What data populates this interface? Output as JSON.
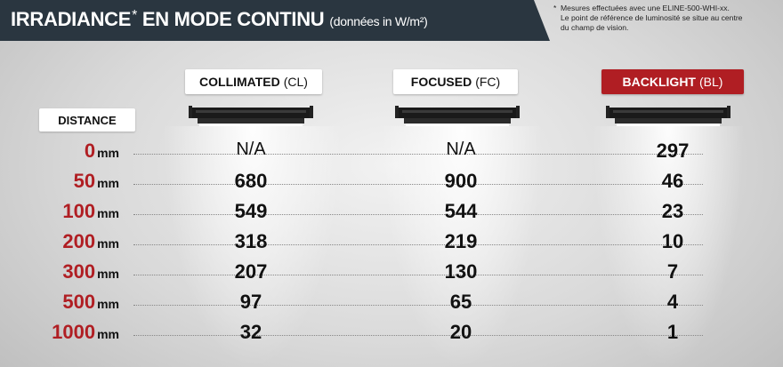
{
  "header": {
    "title": "IRRADIANCE",
    "star": "*",
    "subtitle": "EN MODE CONTINU",
    "units": "(données in W/m²)",
    "note_asterisk": "*",
    "note_line1": "Mesures effectuées avec une ELINE-500-WHI-xx.",
    "note_line2": "Le point de référence de luminosité se situe au centre",
    "note_line3": "du champ de vision."
  },
  "columns": [
    {
      "name": "COLLIMATED",
      "abbr": "(CL)"
    },
    {
      "name": "FOCUSED",
      "abbr": "(FC)"
    },
    {
      "name": "BACKLIGHT",
      "abbr": "(BL)"
    }
  ],
  "colors": {
    "accent_red": "#b01e23",
    "header_bg": "#2a3640"
  },
  "icons": {
    "fixture": "light-fixture-icon"
  },
  "distance_label": "DISTANCE",
  "unit": "mm",
  "rows": [
    {
      "distance": "0",
      "cl": "N/A",
      "fc": "N/A",
      "bl": "297"
    },
    {
      "distance": "50",
      "cl": "680",
      "fc": "900",
      "bl": "46"
    },
    {
      "distance": "100",
      "cl": "549",
      "fc": "544",
      "bl": "23"
    },
    {
      "distance": "200",
      "cl": "318",
      "fc": "219",
      "bl": "10"
    },
    {
      "distance": "300",
      "cl": "207",
      "fc": "130",
      "bl": "7"
    },
    {
      "distance": "500",
      "cl": "97",
      "fc": "65",
      "bl": "4"
    },
    {
      "distance": "1000",
      "cl": "32",
      "fc": "20",
      "bl": "1"
    }
  ]
}
